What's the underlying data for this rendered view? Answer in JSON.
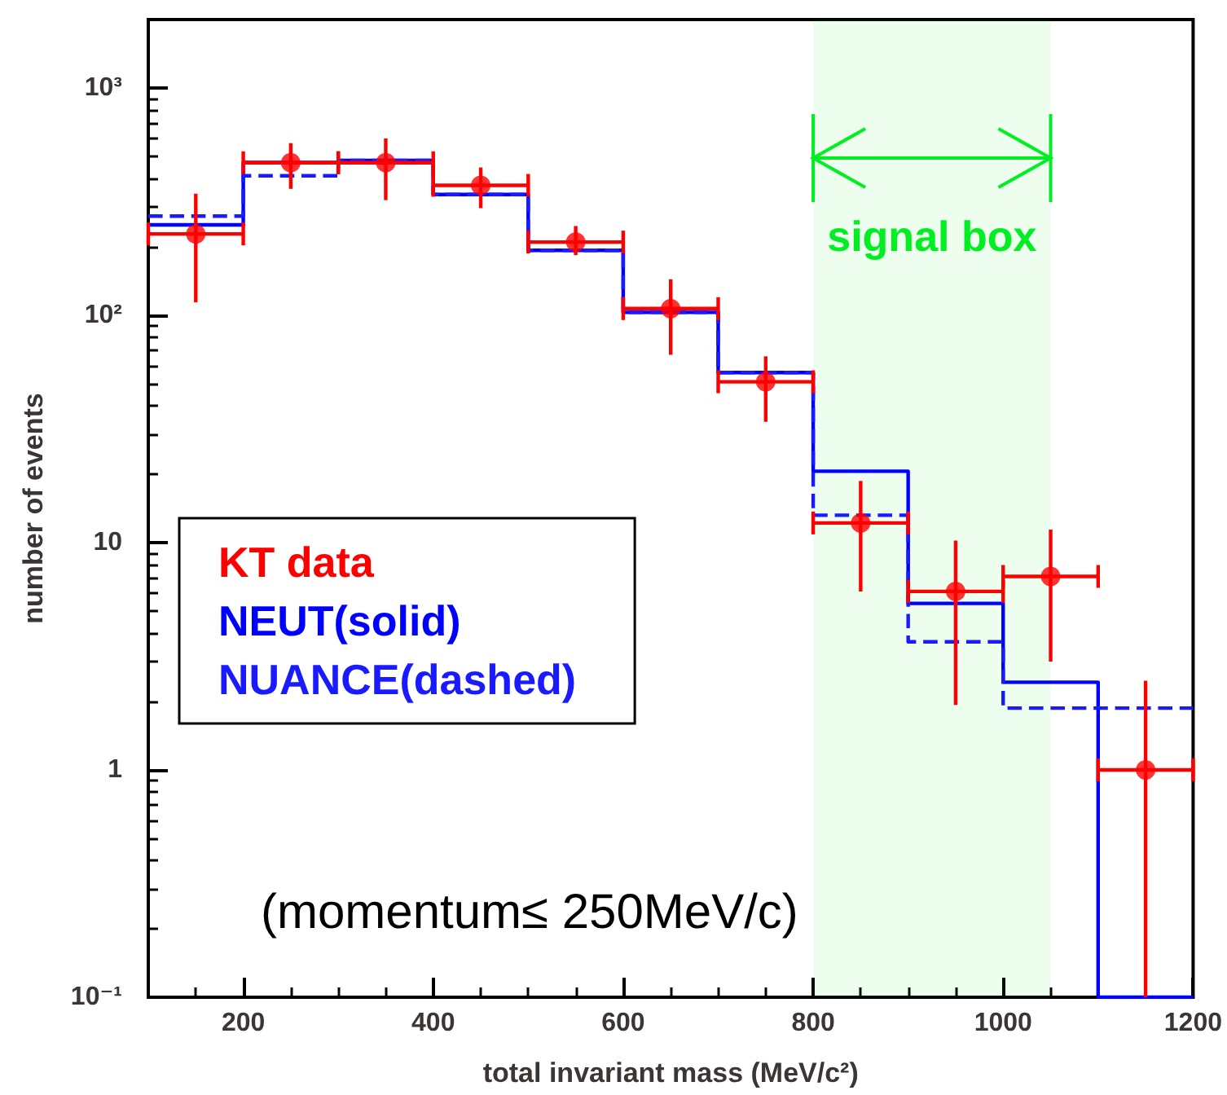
{
  "chart_data": {
    "type": "histogram",
    "xlabel": "total invariant mass (MeV/c²)",
    "ylabel": "number of events",
    "bins": [
      100,
      200,
      300,
      400,
      500,
      600,
      700,
      800,
      900,
      1000,
      1100,
      1200
    ],
    "series": [
      {
        "name": "NEUT(solid)",
        "color": "#0000ff",
        "line_style": "solid",
        "values": [
          250,
          470,
          480,
          340,
          193,
          103,
          56,
          20.6,
          5.4,
          2.43,
          null
        ]
      },
      {
        "name": "NUANCE(dashed)",
        "color": "#1a1aff",
        "line_style": "dashed",
        "values": [
          273,
          411,
          480,
          340,
          193,
          103,
          56,
          13.2,
          3.66,
          1.87,
          1.87
        ]
      },
      {
        "name": "KT data",
        "type": "scatter",
        "color": "#ff0000",
        "marker": "circle",
        "x": [
          150,
          250,
          350,
          450,
          550,
          650,
          750,
          850,
          950,
          1050,
          1150
        ],
        "values": [
          228,
          469,
          469,
          373,
          210,
          107,
          51,
          12.2,
          6.1,
          7.1,
          1.0
        ],
        "errors": [
          [
            114,
            343
          ],
          [
            360,
            572
          ],
          [
            321,
            600
          ],
          [
            296,
            447
          ],
          [
            184,
            247
          ],
          [
            67,
            144
          ],
          [
            34,
            66
          ],
          [
            6.1,
            18.7
          ],
          [
            1.93,
            10.2
          ],
          [
            3.0,
            11.4
          ],
          [
            0.1,
            2.47
          ]
        ],
        "xerrors": [
          50,
          50,
          50,
          50,
          50,
          50,
          50,
          50,
          50,
          50,
          50
        ]
      }
    ],
    "xlim": [
      100,
      1200
    ],
    "xticks": [
      200,
      400,
      600,
      800,
      1000,
      1200
    ],
    "ylim": [
      0.1,
      2000
    ],
    "log": "y",
    "yticks": [
      {
        "value": 0.1,
        "label": "10⁻¹"
      },
      1,
      10,
      {
        "value": 100,
        "label": "10²"
      },
      {
        "value": 1000,
        "label": "10³"
      }
    ],
    "bands": [
      {
        "axis": "x",
        "from": 800,
        "to": 1050,
        "label": "signal box",
        "color": "#00ee22"
      }
    ],
    "annotations": [
      "(momentum≤ 250MeV/c)"
    ],
    "legend": "left",
    "grid": false
  }
}
